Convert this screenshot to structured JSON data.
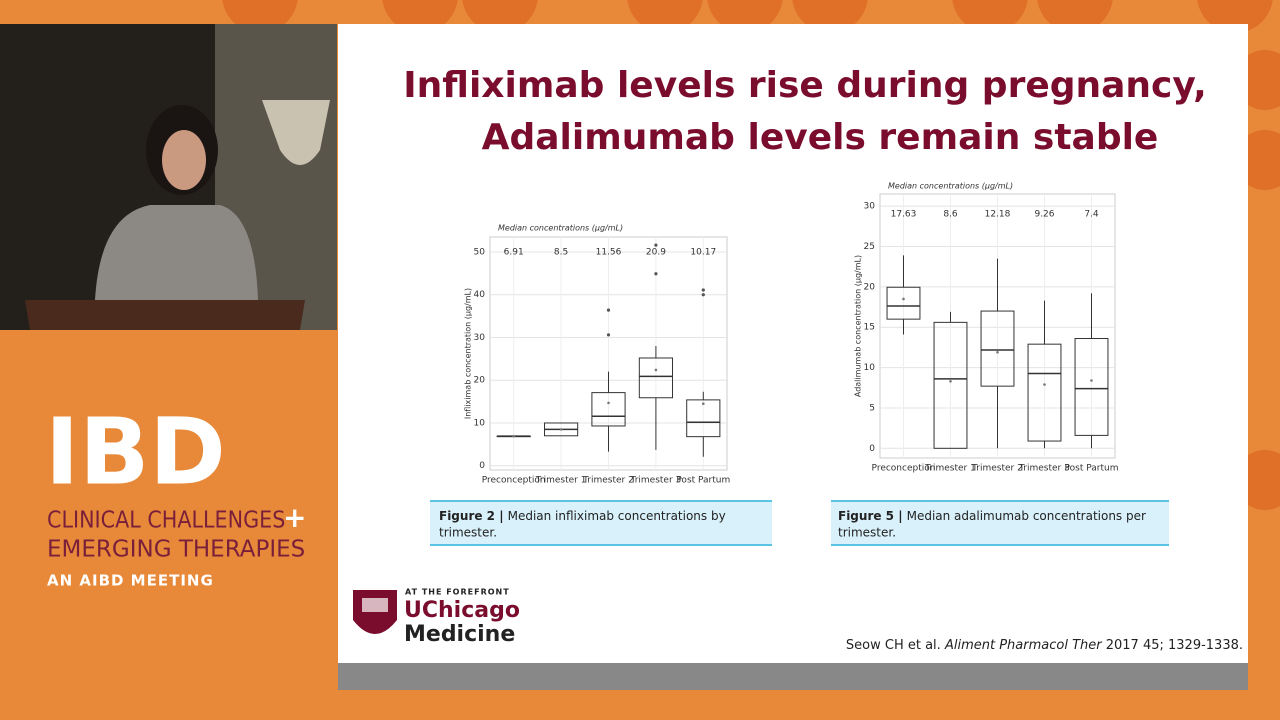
{
  "slide": {
    "title_lines": [
      "Infliximab levels rise during pregnancy,",
      "Adalimumab levels remain stable"
    ],
    "captions": [
      {
        "figure": "Figure 2 |",
        "text": "Median infliximab concentrations by",
        "text2": "trimester."
      },
      {
        "figure": "Figure 5 |",
        "text": "Median adalimumab concentrations per",
        "text2": "trimester."
      }
    ],
    "reference": {
      "authors": "Seow CH et al.",
      "journal": "Aliment Pharmacol Ther",
      "details": "2017 45; 1329-1338."
    },
    "logo": {
      "tagline": "AT THE FOREFRONT",
      "line1": "UChicago",
      "line2": "Medicine"
    }
  },
  "branding": {
    "ibd": "IBD",
    "line1": "CLINICAL CHALLENGES",
    "plus": "+",
    "line2": "EMERGING THERAPIES",
    "line3": "AN AIBD MEETING"
  },
  "chart_data": [
    {
      "type": "box",
      "subtitle": "Median concentrations (μg/mL)",
      "y_label": "Infliximab concentration (μg/mL)",
      "categories": [
        "Preconception",
        "Trimester 1",
        "Trimester 2",
        "Trimester 3",
        "Post Partum"
      ],
      "min": [
        6.91,
        7.0,
        3.3,
        3.7,
        2.1
      ],
      "q1": [
        6.91,
        7.0,
        9.3,
        15.9,
        6.8
      ],
      "median": [
        6.91,
        8.5,
        11.56,
        20.9,
        10.17
      ],
      "q3": [
        6.91,
        10.0,
        17.1,
        25.2,
        15.4
      ],
      "max": [
        6.91,
        10.0,
        22,
        28,
        17.3
      ],
      "mean": [
        6.91,
        8.5,
        14.7,
        22.4,
        14.5
      ],
      "outliers": [
        [],
        [],
        [
          30.6,
          36.4
        ],
        [
          44.9,
          51.6
        ],
        [
          40,
          41.1
        ]
      ],
      "ylim": [
        -1,
        53.5
      ],
      "yticks": [
        0,
        10,
        20,
        30,
        40,
        50
      ],
      "grid": true,
      "color": "#333333"
    },
    {
      "type": "box",
      "subtitle": "Median concentrations (μg/mL)",
      "y_label": "Adalimumab concentration (μg/mL)",
      "categories": [
        "Preconception",
        "Trimester 1",
        "Trimester 2",
        "Trimester 3",
        "Post Partum"
      ],
      "min": [
        14.1,
        0,
        0,
        0,
        0
      ],
      "q1": [
        16.0,
        0,
        7.7,
        0.9,
        1.6
      ],
      "median": [
        17.63,
        8.6,
        12.18,
        9.26,
        7.4
      ],
      "q3": [
        19.95,
        15.6,
        17.0,
        12.9,
        13.6
      ],
      "max": [
        23.9,
        16.9,
        23.5,
        18.3,
        19.2
      ],
      "mean": [
        18.5,
        8.3,
        11.9,
        7.9,
        8.4
      ],
      "outliers": [
        [],
        [],
        [],
        [],
        []
      ],
      "ylim": [
        -1.2,
        31.5
      ],
      "yticks": [
        0,
        5,
        10,
        15,
        20,
        25,
        30
      ],
      "grid": true,
      "color": "#333333"
    }
  ]
}
